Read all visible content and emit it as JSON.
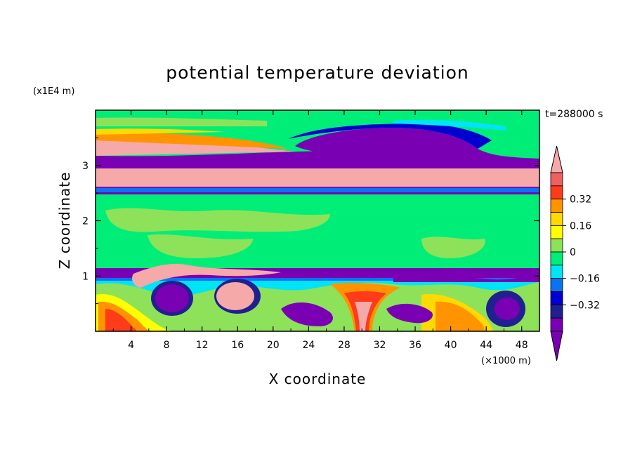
{
  "chart_data": {
    "type": "heatmap",
    "title": "potential temperature deviation",
    "xlabel": "X coordinate",
    "ylabel": "Z coordinate",
    "x_unit": "(×1000 m)",
    "y_unit": "(x1E4 m)",
    "time_label": "t=288000 s",
    "xlim": [
      0,
      50
    ],
    "ylim": [
      0,
      4
    ],
    "x_ticks": [
      4,
      8,
      12,
      16,
      20,
      24,
      28,
      32,
      36,
      40,
      44,
      48
    ],
    "y_ticks": [
      1,
      2,
      3
    ],
    "colorbar": {
      "levels": [
        -0.48,
        -0.4,
        -0.32,
        -0.24,
        -0.16,
        -0.08,
        0,
        0.08,
        0.16,
        0.24,
        0.32,
        0.4,
        0.48
      ],
      "labeled_ticks": [
        0.32,
        0.16,
        0,
        -0.16,
        -0.32
      ],
      "tick_labels": [
        "0.32",
        "0.16",
        "0",
        "−0.16",
        "−0.32"
      ],
      "colors": [
        "#f06060",
        "#ff3b1a",
        "#ff9400",
        "#ffd900",
        "#ffff00",
        "#8ee25a",
        "#00ee77",
        "#00e4f5",
        "#0a72f5",
        "#0000d0",
        "#202090",
        "#7a00b4"
      ],
      "over_color": "#f5a9a9",
      "under_color": "#7a00b4"
    },
    "bands": [
      {
        "z": [
          0.0,
          0.3
        ],
        "level": "mixed"
      },
      {
        "z": [
          0.3,
          1.05
        ],
        "level": "negative-dominant with pink eddies"
      },
      {
        "z": [
          1.05,
          1.15
        ],
        "level": "<-0.48"
      },
      {
        "z": [
          1.15,
          2.5
        ],
        "level": "0 to 0.08"
      },
      {
        "z": [
          2.5,
          2.65
        ],
        "level": "<-0.48"
      },
      {
        "z": [
          2.65,
          3.0
        ],
        "level": ">0.48"
      },
      {
        "z": [
          3.0,
          3.2
        ],
        "level": "<-0.48"
      },
      {
        "z": [
          3.2,
          3.45
        ],
        "level": ">0.48 west, <-0.48 east"
      },
      {
        "z": [
          3.45,
          4.0
        ],
        "level": "0 to 0.08"
      }
    ]
  }
}
